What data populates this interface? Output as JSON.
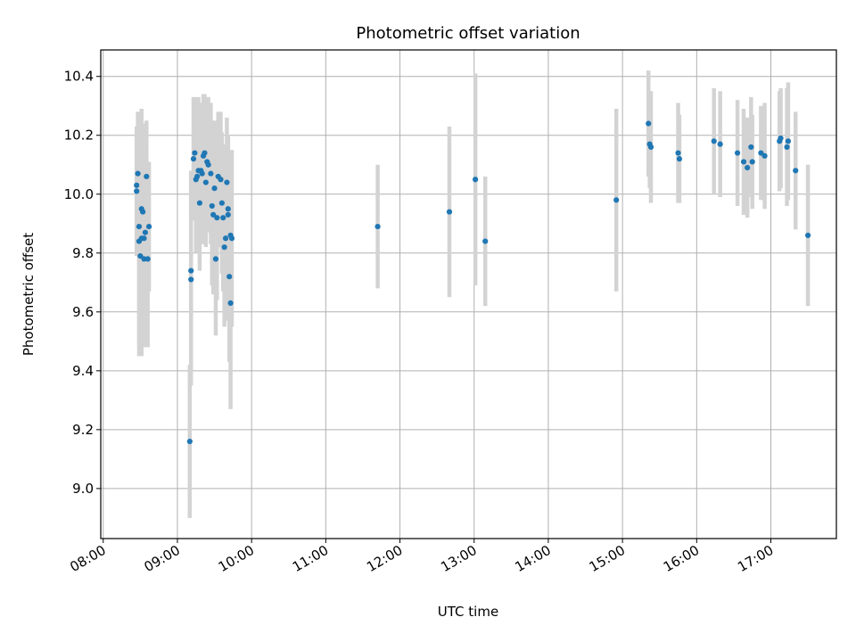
{
  "chart_data": {
    "type": "scatter",
    "title": "Photometric offset variation",
    "xlabel": "UTC time",
    "ylabel": "Photometric offset",
    "xlim": [
      "07:58",
      "17:53"
    ],
    "ylim": [
      8.83,
      10.49
    ],
    "x_ticks": [
      "08:00",
      "09:00",
      "10:00",
      "11:00",
      "12:00",
      "13:00",
      "14:00",
      "15:00",
      "16:00",
      "17:00"
    ],
    "y_ticks": [
      9.0,
      9.2,
      9.4,
      9.6,
      9.8,
      10.0,
      10.2,
      10.4
    ],
    "grid": true,
    "error_bars": true,
    "colors": {
      "point": "#1f77b4",
      "error_bar": "#d3d3d3",
      "grid": "#b0b0b0"
    },
    "points": [
      {
        "x": "08:27",
        "y": 10.01,
        "err": 0.22
      },
      {
        "x": "08:27",
        "y": 10.03,
        "err": 0.19
      },
      {
        "x": "08:28",
        "y": 10.07,
        "err": 0.21
      },
      {
        "x": "08:29",
        "y": 9.84,
        "err": 0.39
      },
      {
        "x": "08:29",
        "y": 9.89,
        "err": 0.39
      },
      {
        "x": "08:30",
        "y": 9.79,
        "err": 0.33
      },
      {
        "x": "08:31",
        "y": 9.95,
        "err": 0.34
      },
      {
        "x": "08:31",
        "y": 9.85,
        "err": 0.4
      },
      {
        "x": "08:32",
        "y": 9.94,
        "err": 0.3
      },
      {
        "x": "08:33",
        "y": 9.78,
        "err": 0.3
      },
      {
        "x": "08:33",
        "y": 9.85,
        "err": 0.25
      },
      {
        "x": "08:34",
        "y": 9.87,
        "err": 0.25
      },
      {
        "x": "08:35",
        "y": 10.06,
        "err": 0.19
      },
      {
        "x": "08:36",
        "y": 9.78,
        "err": 0.3
      },
      {
        "x": "08:37",
        "y": 9.89,
        "err": 0.22
      },
      {
        "x": "09:10",
        "y": 9.16,
        "err": 0.26
      },
      {
        "x": "09:11",
        "y": 9.74,
        "err": 0.34
      },
      {
        "x": "09:11",
        "y": 9.71,
        "err": 0.36
      },
      {
        "x": "09:13",
        "y": 10.12,
        "err": 0.21
      },
      {
        "x": "09:14",
        "y": 10.14,
        "err": 0.19
      },
      {
        "x": "09:15",
        "y": 10.05,
        "err": 0.25
      },
      {
        "x": "09:16",
        "y": 10.06,
        "err": 0.22
      },
      {
        "x": "09:17",
        "y": 10.08,
        "err": 0.25
      },
      {
        "x": "09:18",
        "y": 9.97,
        "err": 0.23
      },
      {
        "x": "09:19",
        "y": 10.08,
        "err": 0.23
      },
      {
        "x": "09:20",
        "y": 10.07,
        "err": 0.24
      },
      {
        "x": "09:21",
        "y": 10.13,
        "err": 0.21
      },
      {
        "x": "09:22",
        "y": 10.14,
        "err": 0.2
      },
      {
        "x": "09:23",
        "y": 10.04,
        "err": 0.22
      },
      {
        "x": "09:24",
        "y": 10.11,
        "err": 0.2
      },
      {
        "x": "09:25",
        "y": 10.1,
        "err": 0.23
      },
      {
        "x": "09:27",
        "y": 10.07,
        "err": 0.24
      },
      {
        "x": "09:28",
        "y": 9.96,
        "err": 0.27
      },
      {
        "x": "09:29",
        "y": 9.93,
        "err": 0.27
      },
      {
        "x": "09:30",
        "y": 10.02,
        "err": 0.23
      },
      {
        "x": "09:31",
        "y": 9.78,
        "err": 0.26
      },
      {
        "x": "09:32",
        "y": 9.92,
        "err": 0.28
      },
      {
        "x": "09:33",
        "y": 10.06,
        "err": 0.22
      },
      {
        "x": "09:35",
        "y": 10.05,
        "err": 0.23
      },
      {
        "x": "09:36",
        "y": 9.97,
        "err": 0.24
      },
      {
        "x": "09:37",
        "y": 9.92,
        "err": 0.25
      },
      {
        "x": "09:38",
        "y": 9.82,
        "err": 0.27
      },
      {
        "x": "09:39",
        "y": 9.85,
        "err": 0.28
      },
      {
        "x": "09:40",
        "y": 10.04,
        "err": 0.22
      },
      {
        "x": "09:41",
        "y": 9.95,
        "err": 0.25
      },
      {
        "x": "09:41",
        "y": 9.93,
        "err": 0.27
      },
      {
        "x": "09:42",
        "y": 9.72,
        "err": 0.29
      },
      {
        "x": "09:43",
        "y": 9.86,
        "err": 0.29
      },
      {
        "x": "09:43",
        "y": 9.63,
        "err": 0.36
      },
      {
        "x": "09:44",
        "y": 9.85,
        "err": 0.3
      },
      {
        "x": "11:42",
        "y": 9.89,
        "err": 0.21
      },
      {
        "x": "12:40",
        "y": 9.94,
        "err": 0.29
      },
      {
        "x": "13:01",
        "y": 10.05,
        "err": 0.36
      },
      {
        "x": "13:09",
        "y": 9.84,
        "err": 0.22
      },
      {
        "x": "14:55",
        "y": 9.98,
        "err": 0.31
      },
      {
        "x": "15:21",
        "y": 10.24,
        "err": 0.18
      },
      {
        "x": "15:22",
        "y": 10.17,
        "err": 0.15
      },
      {
        "x": "15:23",
        "y": 10.16,
        "err": 0.19
      },
      {
        "x": "15:45",
        "y": 10.14,
        "err": 0.17
      },
      {
        "x": "15:46",
        "y": 10.12,
        "err": 0.15
      },
      {
        "x": "16:14",
        "y": 10.18,
        "err": 0.18
      },
      {
        "x": "16:19",
        "y": 10.17,
        "err": 0.18
      },
      {
        "x": "16:33",
        "y": 10.14,
        "err": 0.18
      },
      {
        "x": "16:38",
        "y": 10.11,
        "err": 0.18
      },
      {
        "x": "16:41",
        "y": 10.09,
        "err": 0.17
      },
      {
        "x": "16:44",
        "y": 10.16,
        "err": 0.17
      },
      {
        "x": "16:45",
        "y": 10.11,
        "err": 0.16
      },
      {
        "x": "16:52",
        "y": 10.14,
        "err": 0.16
      },
      {
        "x": "16:55",
        "y": 10.13,
        "err": 0.18
      },
      {
        "x": "17:07",
        "y": 10.18,
        "err": 0.17
      },
      {
        "x": "17:08",
        "y": 10.19,
        "err": 0.17
      },
      {
        "x": "17:13",
        "y": 10.16,
        "err": 0.2
      },
      {
        "x": "17:14",
        "y": 10.18,
        "err": 0.2
      },
      {
        "x": "17:20",
        "y": 10.08,
        "err": 0.2
      },
      {
        "x": "17:30",
        "y": 9.86,
        "err": 0.24
      }
    ]
  }
}
